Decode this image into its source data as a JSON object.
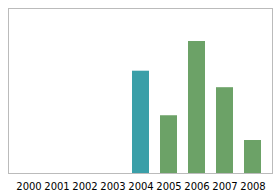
{
  "chart_data": {
    "type": "bar",
    "categories": [
      "2000",
      "2001",
      "2002",
      "2003",
      "2004",
      "2005",
      "2006",
      "2007",
      "2008"
    ],
    "values": [
      0,
      0,
      0,
      0,
      62,
      35,
      80,
      52,
      20
    ],
    "colors": [
      "#3a9fa8",
      "#6ca267",
      "#6ca267",
      "#6ca267",
      "#3a9fa8",
      "#6ca267",
      "#6ca267",
      "#6ca267",
      "#6ca267"
    ],
    "ylim": [
      0,
      100
    ],
    "yticks": [],
    "grid": false,
    "tick_labels": "x"
  }
}
